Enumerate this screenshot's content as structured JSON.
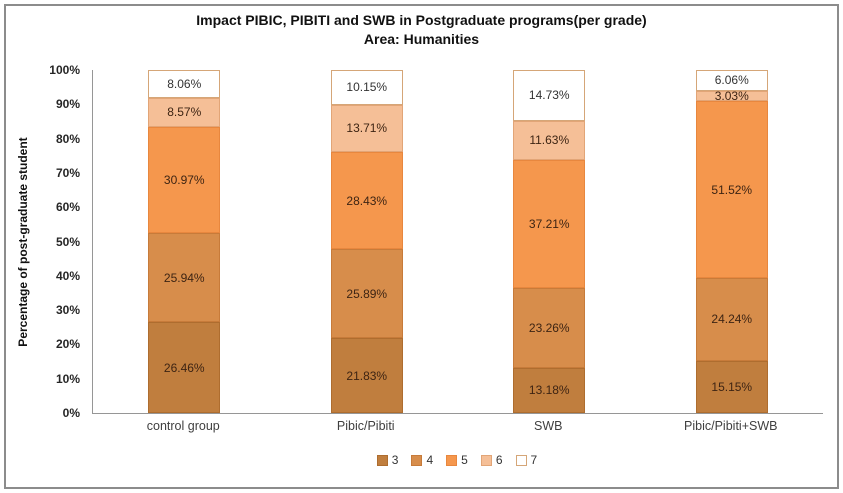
{
  "chart_data": {
    "type": "bar",
    "stacked": true,
    "title": "Impact PIBIC, PIBITI and SWB in Postgraduate programs(per grade)",
    "subtitle": "Area: Humanities",
    "ylabel": "Percentage of post-graduate student",
    "xlabel": "",
    "ylim": [
      0,
      100
    ],
    "ytick_labels": [
      "0%",
      "10%",
      "20%",
      "30%",
      "40%",
      "50%",
      "60%",
      "70%",
      "80%",
      "90%",
      "100%"
    ],
    "grid": false,
    "legend_position": "bottom",
    "categories": [
      "control group",
      "Pibic/Pibiti",
      "SWB",
      "Pibic/Pibiti+SWB"
    ],
    "series": [
      {
        "name": "3",
        "color": "#C07E3E",
        "border_color": "#AE6D2F",
        "label_color": "#3D2413",
        "values": [
          26.46,
          21.83,
          13.18,
          15.15
        ],
        "labels": [
          "26.46%",
          "21.83%",
          "13.18%",
          "15.15%"
        ]
      },
      {
        "name": "4",
        "color": "#D78D4B",
        "border_color": "#C77B3A",
        "label_color": "#3D2413",
        "values": [
          25.94,
          25.89,
          23.26,
          24.24
        ],
        "labels": [
          "25.94%",
          "25.89%",
          "23.26%",
          "24.24%"
        ]
      },
      {
        "name": "5",
        "color": "#F5974D",
        "border_color": "#E8873E",
        "label_color": "#3D2413",
        "values": [
          30.97,
          28.43,
          37.21,
          51.52
        ],
        "labels": [
          "30.97%",
          "28.43%",
          "37.21%",
          "51.52%"
        ]
      },
      {
        "name": "6",
        "color": "#F5BF97",
        "border_color": "#E2A577",
        "label_color": "#3D2413",
        "values": [
          8.57,
          13.71,
          11.63,
          3.03
        ],
        "labels": [
          "8.57%",
          "13.71%",
          "11.63%",
          "3.03%"
        ]
      },
      {
        "name": "7",
        "color": "#FFFFFF",
        "border_color": "#D5A678",
        "label_color": "#333333",
        "values": [
          8.06,
          10.15,
          14.73,
          6.06
        ],
        "labels": [
          "8.06%",
          "10.15%",
          "14.73%",
          "6.06%"
        ]
      }
    ]
  }
}
